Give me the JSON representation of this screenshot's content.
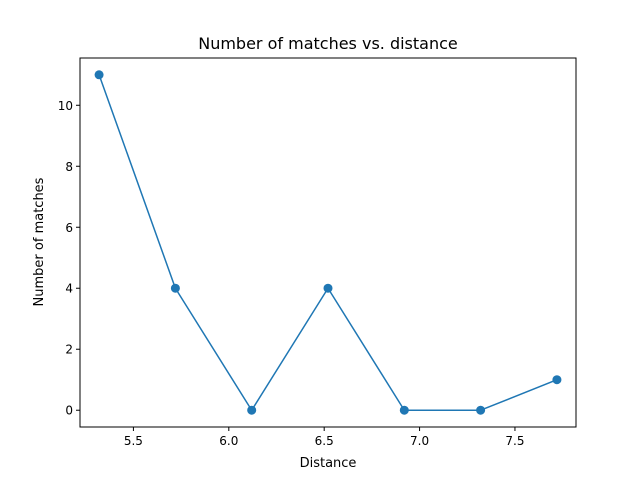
{
  "chart_data": {
    "type": "line",
    "title": "Number of matches vs. distance",
    "xlabel": "Distance",
    "ylabel": "Number of matches",
    "xlim": [
      5.22,
      7.82
    ],
    "ylim": [
      -0.55,
      11.55
    ],
    "xticks": [
      5.5,
      6.0,
      6.5,
      7.0,
      7.5
    ],
    "xtick_labels": [
      "5.5",
      "6.0",
      "6.5",
      "7.0",
      "7.5"
    ],
    "yticks": [
      0,
      2,
      4,
      6,
      8,
      10
    ],
    "ytick_labels": [
      "0",
      "2",
      "4",
      "6",
      "8",
      "10"
    ],
    "grid": false,
    "series": [
      {
        "color": "#1f77b4",
        "marker": "circle",
        "x": [
          5.32,
          5.72,
          6.12,
          6.52,
          6.92,
          7.32,
          7.72
        ],
        "y": [
          11,
          4,
          0,
          4,
          0,
          0,
          1
        ]
      }
    ]
  }
}
